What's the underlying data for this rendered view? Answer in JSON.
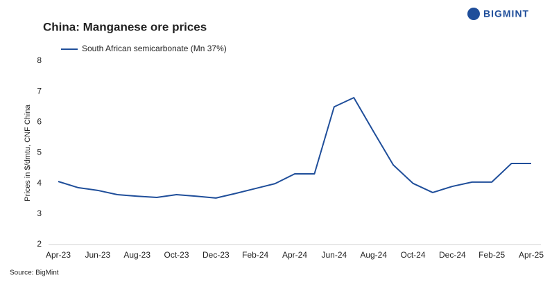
{
  "chart_data": {
    "type": "line",
    "title": "China: Manganese ore prices",
    "brand": "BIGMINT",
    "y_label": "Prices in $/dmtu, CNF China",
    "source": "Source:  BigMint",
    "categories": [
      "Apr-23",
      null,
      "Jun-23",
      null,
      "Aug-23",
      null,
      "Oct-23",
      null,
      "Dec-23",
      null,
      "Feb-24",
      null,
      "Apr-24",
      null,
      "Jun-24",
      null,
      "Aug-24",
      null,
      "Oct-24",
      null,
      "Dec-24",
      null,
      "Feb-25",
      null,
      "Apr-25"
    ],
    "series": [
      {
        "name": "South African semicarbonate (Mn 37%)",
        "color": "#1f4e9a",
        "values": [
          4.06,
          3.86,
          3.77,
          3.63,
          3.58,
          3.54,
          3.63,
          3.58,
          3.52,
          3.67,
          3.83,
          3.99,
          4.31,
          4.31,
          6.5,
          6.8,
          5.69,
          4.6,
          4.0,
          3.7,
          3.9,
          4.04,
          4.04,
          4.65,
          4.65
        ]
      }
    ],
    "ylim": [
      2,
      8
    ],
    "yticks": [
      2,
      3,
      4,
      5,
      6,
      7,
      8
    ],
    "grid": false
  }
}
